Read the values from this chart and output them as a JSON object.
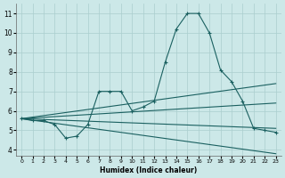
{
  "xlabel": "Humidex (Indice chaleur)",
  "bg_color": "#cce8e8",
  "grid_color": "#aacece",
  "line_color": "#1a6060",
  "xlim": [
    -0.5,
    23.5
  ],
  "ylim": [
    3.7,
    11.5
  ],
  "xticks": [
    0,
    1,
    2,
    3,
    4,
    5,
    6,
    7,
    8,
    9,
    10,
    11,
    12,
    13,
    14,
    15,
    16,
    17,
    18,
    19,
    20,
    21,
    22,
    23
  ],
  "yticks": [
    4,
    5,
    6,
    7,
    8,
    9,
    10,
    11
  ],
  "main_curve": {
    "x": [
      0,
      1,
      2,
      3,
      4,
      5,
      6,
      7,
      8,
      9,
      10,
      11,
      12,
      13,
      14,
      15,
      16,
      17,
      18,
      19,
      20,
      21,
      22,
      23
    ],
    "y": [
      5.6,
      5.5,
      5.5,
      5.3,
      4.6,
      4.7,
      5.3,
      7.0,
      7.0,
      7.0,
      6.0,
      6.2,
      6.5,
      8.5,
      10.2,
      11.0,
      11.0,
      10.0,
      8.1,
      7.5,
      6.5,
      5.1,
      5.0,
      4.9
    ]
  },
  "straight_lines": [
    {
      "x": [
        0,
        23
      ],
      "y": [
        5.6,
        3.8
      ]
    },
    {
      "x": [
        0,
        23
      ],
      "y": [
        5.6,
        5.1
      ]
    },
    {
      "x": [
        0,
        23
      ],
      "y": [
        5.6,
        6.4
      ]
    },
    {
      "x": [
        0,
        23
      ],
      "y": [
        5.6,
        7.4
      ]
    }
  ]
}
